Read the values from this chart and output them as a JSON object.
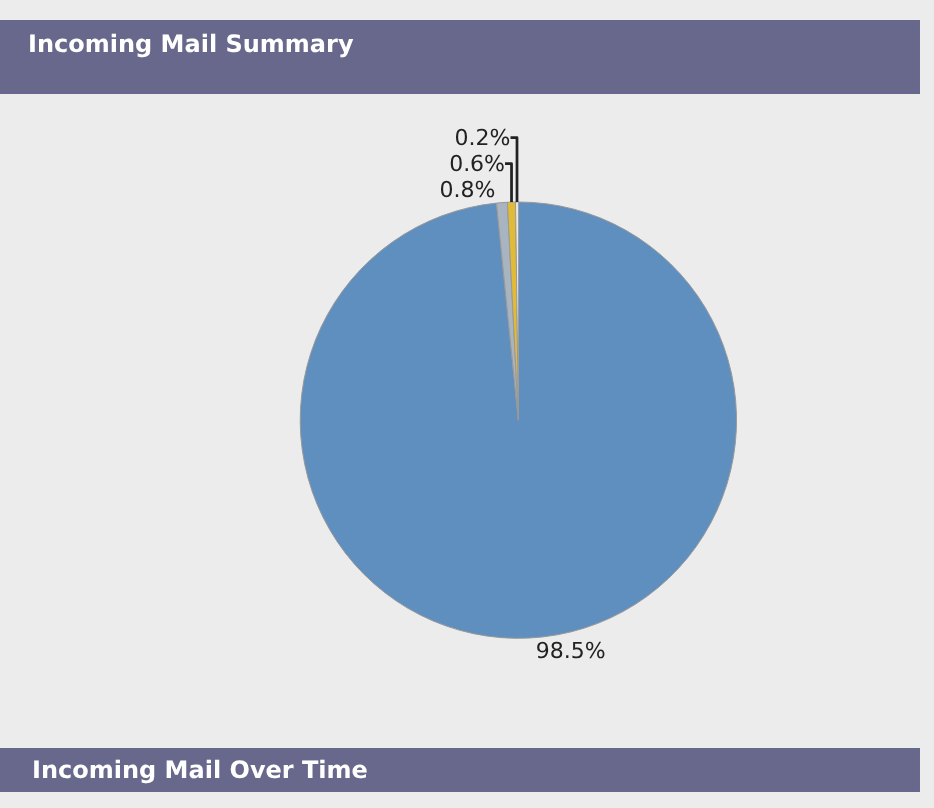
{
  "chart_data": {
    "type": "pie",
    "title": "Incoming Mail Summary",
    "categories": [
      null,
      null,
      null,
      null
    ],
    "values": [
      98.5,
      0.8,
      0.6,
      0.2
    ],
    "colors": [
      "#5f8fbe",
      "#a8b4bf",
      "#e2bb36",
      "#f6f6f2"
    ],
    "value_labels": [
      "98.5%",
      "0.8%",
      "0.6%",
      "0.2%"
    ],
    "annotations": [
      "Incoming Mail Over Time"
    ],
    "legend": false
  }
}
